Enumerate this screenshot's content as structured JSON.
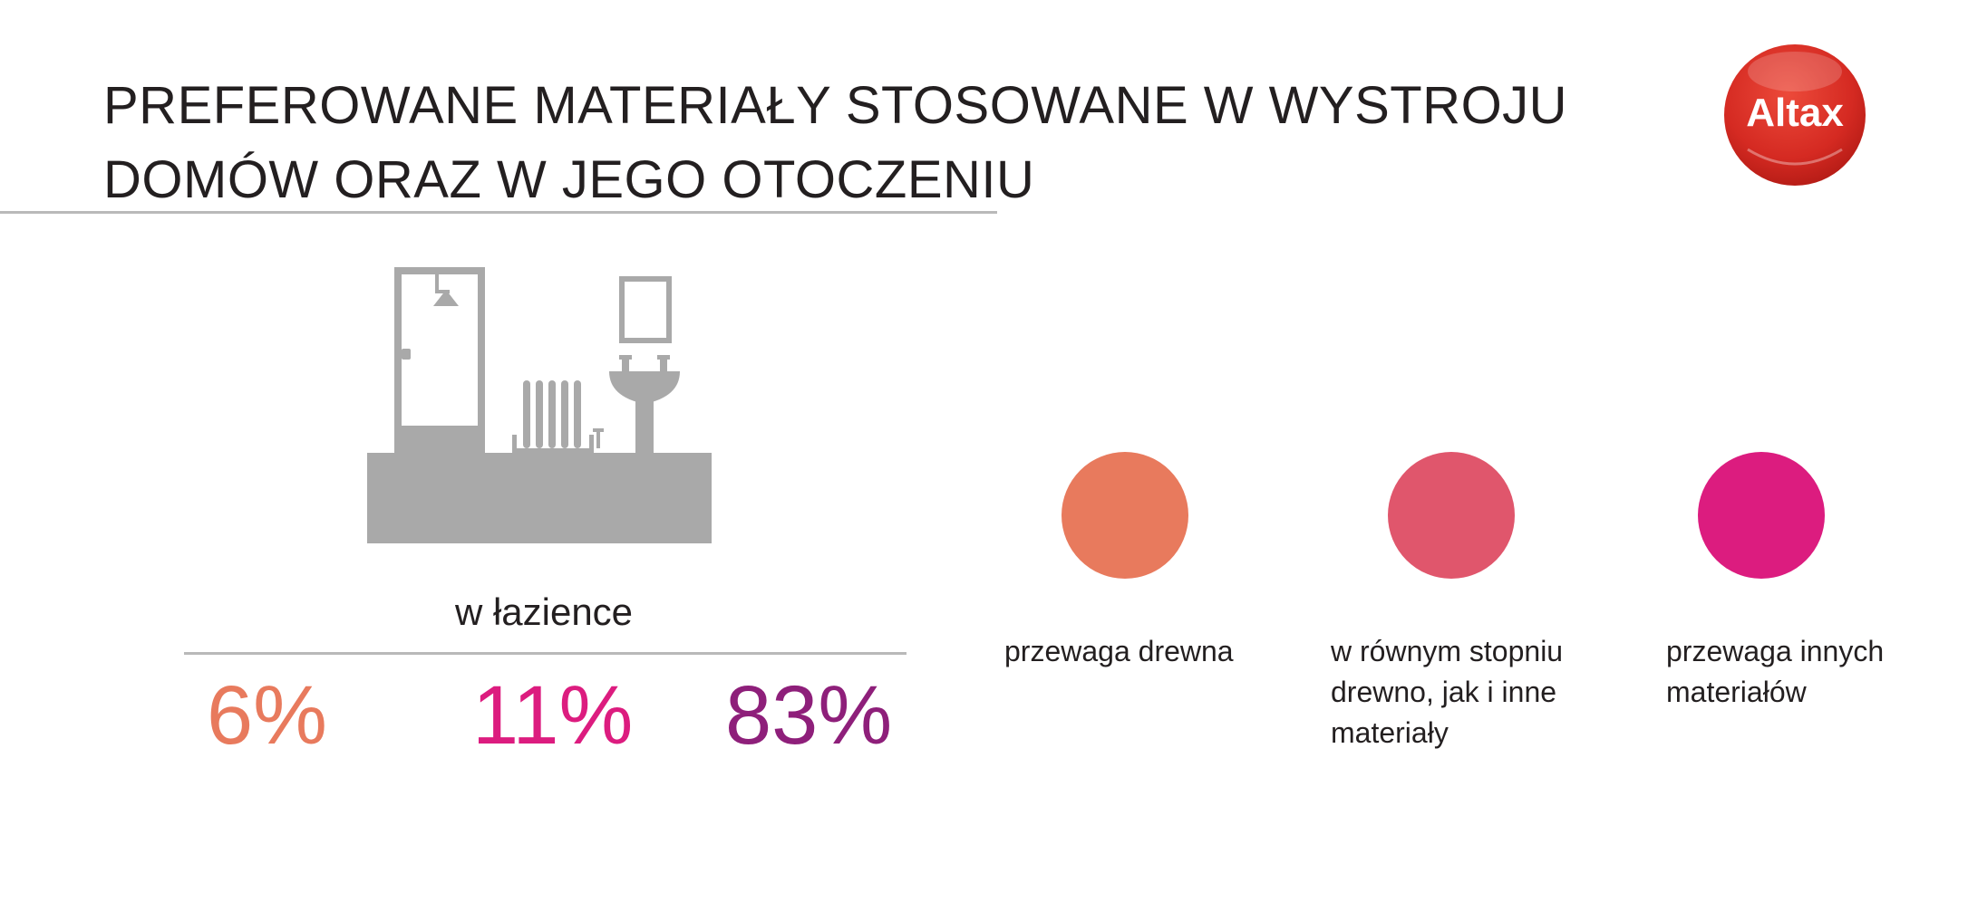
{
  "chart_data": {
    "type": "table",
    "title": "PREFEROWANE MATERIAŁY STOSOWANE W WYSTROJU DOMÓW ORAZ W JEGO OTOCZENIU",
    "title_lines": [
      "PREFEROWANE MATERIAŁY STOSOWANE W WYSTROJU",
      "DOMÓW ORAZ W JEGO OTOCZENIU"
    ],
    "category": "w łazience",
    "values": [
      "6%",
      "11%",
      "83%"
    ],
    "value_colors": [
      "#e87a5d",
      "#dc1c7f",
      "#8e1f7a"
    ],
    "legend": [
      {
        "label": "przewaga drewna",
        "color": "#e87a5d"
      },
      {
        "label": "w równym stopniu drewno, jak i inne materiały",
        "color": "#e0566c"
      },
      {
        "label": "przewaga innych materiałów",
        "color": "#dc1c7f"
      }
    ]
  },
  "logo": {
    "text": "Altax",
    "color": "#d52a22"
  },
  "illustration": {
    "icon": "bathroom-icon",
    "color": "#a9a9a9"
  }
}
